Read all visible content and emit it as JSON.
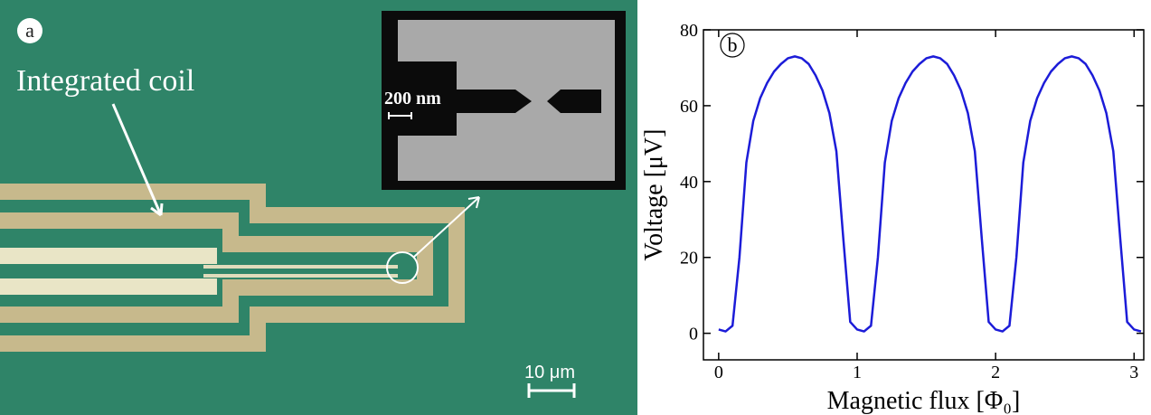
{
  "panel_a": {
    "label": "a",
    "annotation": "Integrated coil",
    "inset_scale": "200 nm",
    "scale_bar": "10 μm"
  },
  "chart_data": {
    "type": "line",
    "panel_label": "b",
    "x_label": "Magnetic flux [Φ₀]",
    "y_label": "Voltage [μV]",
    "x": [
      0,
      0.05,
      0.1,
      0.15,
      0.2,
      0.25,
      0.3,
      0.35,
      0.4,
      0.45,
      0.5,
      0.55,
      0.6,
      0.65,
      0.7,
      0.75,
      0.8,
      0.85,
      0.9,
      0.95,
      1,
      1.05,
      1.1,
      1.15,
      1.2,
      1.25,
      1.3,
      1.35,
      1.4,
      1.45,
      1.5,
      1.55,
      1.6,
      1.65,
      1.7,
      1.75,
      1.8,
      1.85,
      1.9,
      1.95,
      2,
      2.05,
      2.1,
      2.15,
      2.2,
      2.25,
      2.3,
      2.35,
      2.4,
      2.45,
      2.5,
      2.55,
      2.6,
      2.65,
      2.7,
      2.75,
      2.8,
      2.85,
      2.9,
      2.95,
      3,
      3.05
    ],
    "series": [
      {
        "name": "V",
        "color": "#1c1cd8",
        "values": [
          1,
          0.5,
          2,
          20,
          45,
          56,
          62,
          66,
          69,
          71,
          72.5,
          73,
          72.5,
          71,
          68,
          64,
          58,
          48,
          25,
          3,
          1,
          0.5,
          2,
          20,
          45,
          56,
          62,
          66,
          69,
          71,
          72.5,
          73,
          72.5,
          71,
          68,
          64,
          58,
          48,
          25,
          3,
          1,
          0.5,
          2,
          20,
          45,
          56,
          62,
          66,
          69,
          71,
          72.5,
          73,
          72.5,
          71,
          68,
          64,
          58,
          48,
          25,
          3,
          1,
          0.5
        ]
      }
    ],
    "xlim": [
      -0.11,
      3.07
    ],
    "ylim": [
      -7,
      80
    ],
    "xticks": [
      0,
      1,
      2,
      3
    ],
    "yticks": [
      0,
      20,
      40,
      60,
      80
    ]
  }
}
